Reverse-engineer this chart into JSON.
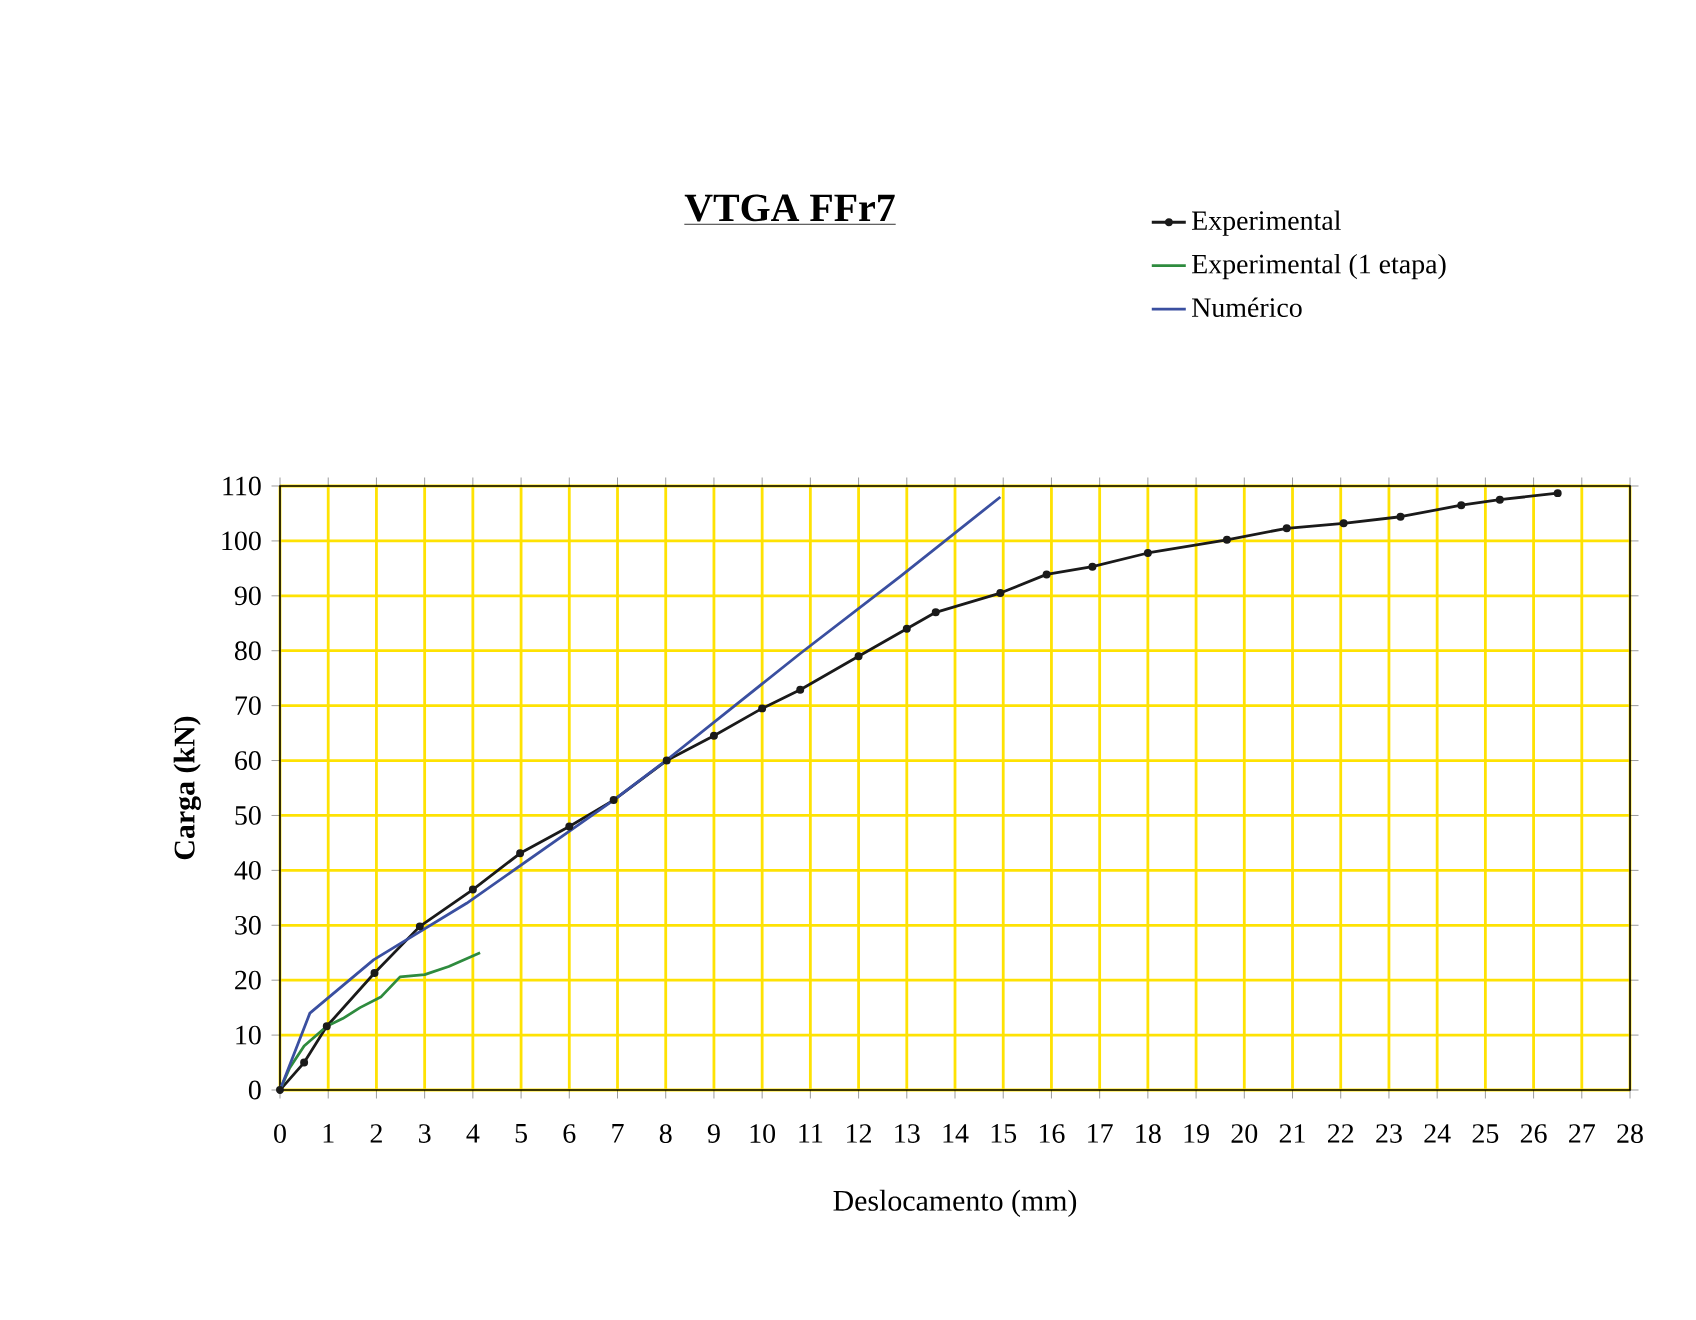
{
  "chart_data": {
    "type": "line",
    "title": "VTGA FFr7",
    "xlabel": "Deslocamento (mm)",
    "ylabel": "Carga (kN)",
    "xlim": [
      0,
      28
    ],
    "xticks": [
      0,
      1,
      2,
      3,
      4,
      5,
      6,
      7,
      8,
      9,
      10,
      11,
      12,
      13,
      14,
      15,
      16,
      17,
      18,
      19,
      20,
      21,
      22,
      23,
      24,
      25,
      26,
      27,
      28
    ],
    "ylim": [
      0,
      110
    ],
    "yticks": [
      0,
      10,
      20,
      30,
      40,
      50,
      60,
      70,
      80,
      90,
      100,
      110
    ],
    "grid": true,
    "legend": "top right",
    "series": [
      {
        "name": "Experimental",
        "color": "#1a1a1a",
        "marker": "circle",
        "x": [
          0,
          0.5,
          0.97,
          1.96,
          2.9,
          4,
          4.98,
          6,
          6.92,
          8.02,
          9,
          10,
          10.79,
          12,
          13,
          13.6,
          14.94,
          15.9,
          16.85,
          18,
          19.64,
          20.88,
          22.06,
          23.24,
          24.5,
          25.3,
          26.5
        ],
        "values": [
          0,
          5,
          11.6,
          21.3,
          29.8,
          36.5,
          43.1,
          48,
          52.8,
          60,
          64.5,
          69.5,
          72.9,
          79,
          84,
          87,
          90.5,
          93.9,
          95.3,
          97.8,
          100.2,
          102.3,
          103.2,
          104.4,
          106.5,
          107.5,
          108.7
        ]
      },
      {
        "name": "Experimental (1 etapa)",
        "color": "#2e8b3e",
        "x": [
          0,
          0.2,
          0.5,
          0.97,
          1.3,
          1.66,
          2.1,
          2.49,
          3,
          3.5,
          4.15
        ],
        "values": [
          0,
          4,
          8,
          11.6,
          13,
          15,
          17,
          20.6,
          21,
          22.5,
          25
        ]
      },
      {
        "name": "Numérico",
        "color": "#3a4fa0",
        "x": [
          0,
          0.62,
          1.94,
          3.87,
          6.92,
          8.02,
          10.79,
          12.86,
          14.94
        ],
        "values": [
          0,
          14,
          23.7,
          34,
          52.8,
          60.1,
          79.5,
          93.5,
          108
        ]
      }
    ]
  }
}
